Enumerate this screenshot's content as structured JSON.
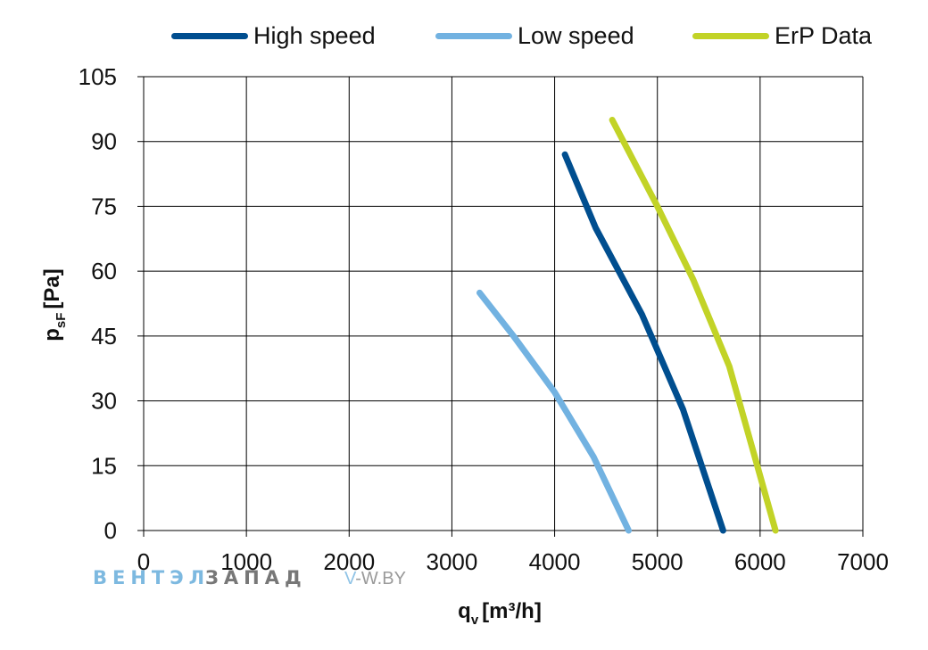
{
  "chart_data": {
    "type": "line",
    "title": "",
    "xlabel": "q",
    "xlabel_sub": "v",
    "xlabel_unit": "[m³/h]",
    "ylabel": "p",
    "ylabel_sub": "sF",
    "ylabel_unit": "[Pa]",
    "xlim": [
      0,
      7000
    ],
    "ylim": [
      0,
      105
    ],
    "xticks": [
      0,
      1000,
      2000,
      3000,
      4000,
      5000,
      6000,
      7000
    ],
    "yticks": [
      0,
      15,
      30,
      45,
      60,
      75,
      90,
      105
    ],
    "grid": true,
    "legend_position": "top",
    "series": [
      {
        "name": "High speed",
        "color": "#004e8f",
        "x": [
          4100,
          4400,
          4850,
          5250,
          5640
        ],
        "y": [
          87,
          70,
          50,
          28,
          0
        ]
      },
      {
        "name": "Low speed",
        "color": "#72b2e1",
        "x": [
          3270,
          3600,
          4000,
          4380,
          4720
        ],
        "y": [
          55,
          45,
          32,
          17,
          0
        ]
      },
      {
        "name": "ErP Data",
        "color": "#c2d327",
        "x": [
          4560,
          5000,
          5350,
          5700,
          6150
        ],
        "y": [
          95,
          75,
          58,
          38,
          0
        ]
      }
    ]
  },
  "watermark": {
    "part1": "ВЕНТЭЛ",
    "part2": "ЗАПАД",
    "part1_color": "#7db9e0",
    "part2_color": "#777777",
    "site_v": "V",
    "site_rest": "-W.BY"
  }
}
